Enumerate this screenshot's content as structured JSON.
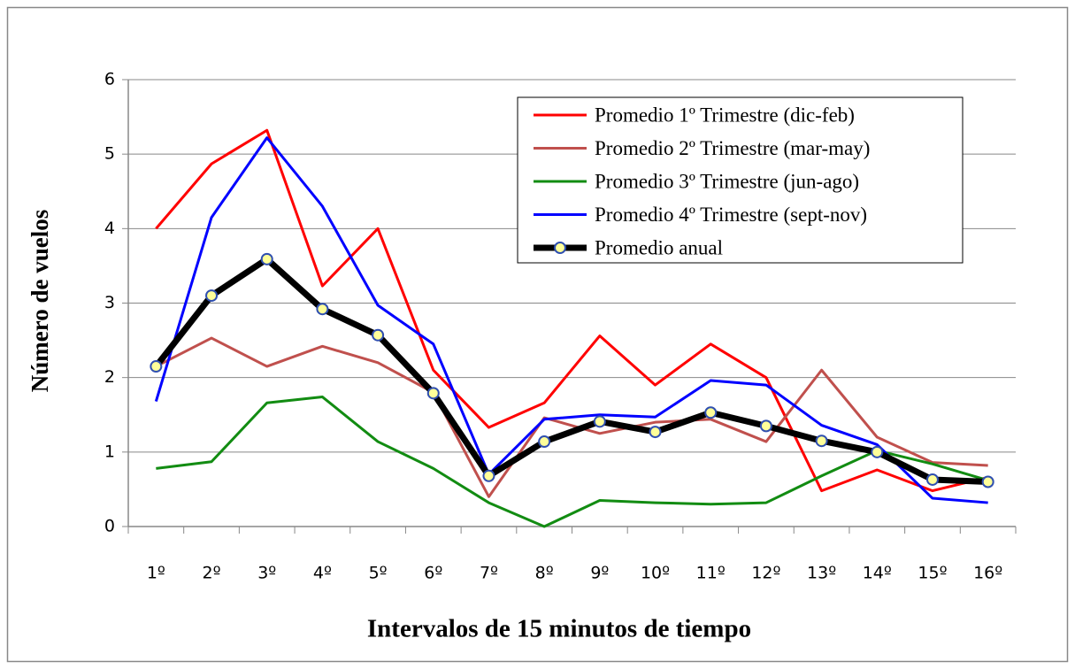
{
  "chart_data": {
    "type": "line",
    "x_label": "Intervalos de 15 minutos de tiempo",
    "y_label": "Número de vuelos",
    "categories": [
      "1º",
      "2º",
      "3º",
      "4º",
      "5º",
      "6º",
      "7º",
      "8º",
      "9º",
      "10º",
      "11º",
      "12º",
      "13º",
      "14º",
      "15º",
      "16º"
    ],
    "ylim": [
      0,
      6
    ],
    "yticks": [
      0,
      1,
      2,
      3,
      4,
      5,
      6
    ],
    "grid": true,
    "legend": "upper right",
    "series": [
      {
        "name": "Promedio 1º Trimestre (dic-feb)",
        "color": "#ff0000",
        "values": [
          4.0,
          4.87,
          5.32,
          3.23,
          4.0,
          2.1,
          1.33,
          1.66,
          2.56,
          1.9,
          2.45,
          2.0,
          0.48,
          0.76,
          0.48,
          0.66
        ]
      },
      {
        "name": "Promedio 2º Trimestre (mar-may)",
        "color": "#c0504d",
        "values": [
          2.15,
          2.53,
          2.15,
          2.42,
          2.2,
          1.8,
          0.4,
          1.46,
          1.25,
          1.4,
          1.44,
          1.14,
          2.1,
          1.2,
          0.86,
          0.82
        ]
      },
      {
        "name": "Promedio 3º Trimestre (jun-ago)",
        "color": "#128c12",
        "values": [
          0.78,
          0.87,
          1.66,
          1.74,
          1.14,
          0.78,
          0.32,
          0.0,
          0.35,
          0.32,
          0.3,
          0.32,
          0.68,
          1.02,
          0.84,
          0.62
        ]
      },
      {
        "name": "Promedio 4º Trimestre (sept-nov)",
        "color": "#0000ff",
        "values": [
          1.68,
          4.15,
          5.22,
          4.3,
          2.97,
          2.45,
          0.7,
          1.44,
          1.5,
          1.47,
          1.96,
          1.9,
          1.36,
          1.1,
          0.38,
          0.32
        ]
      },
      {
        "name": "Promedio anual",
        "color": "#000000",
        "marker": true,
        "values": [
          2.15,
          3.1,
          3.59,
          2.92,
          2.57,
          1.79,
          0.68,
          1.14,
          1.41,
          1.27,
          1.53,
          1.35,
          1.15,
          1.0,
          0.63,
          0.6
        ]
      }
    ]
  }
}
